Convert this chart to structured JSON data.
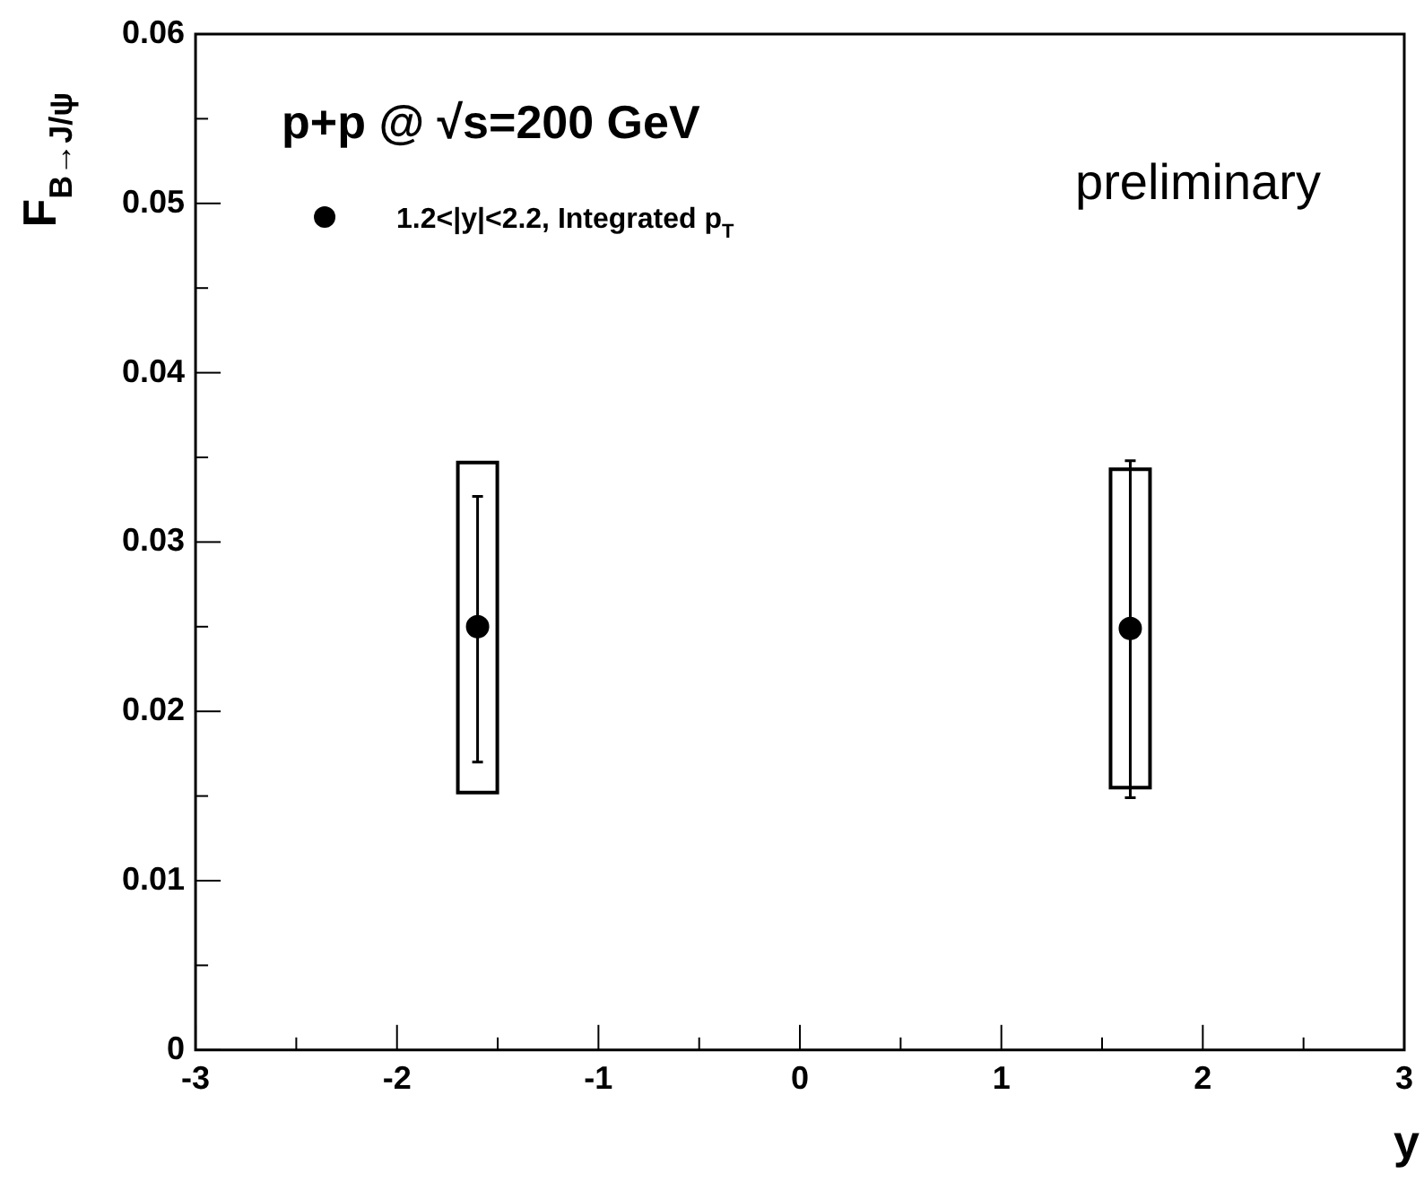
{
  "chart_data": {
    "type": "scatter",
    "xlabel": "y",
    "ylabel": "F$_{B→J/ψ}$",
    "annotations": [
      "p+p @ √s=200 GeV",
      "preliminary"
    ],
    "xlim": [
      -3,
      3
    ],
    "xticks": [
      -3,
      {
        "value": -2.5,
        "label": null
      },
      -2,
      {
        "value": -1.5,
        "label": null
      },
      -1,
      {
        "value": -0.5,
        "label": null
      },
      0,
      {
        "value": 0.5,
        "label": null
      },
      1,
      {
        "value": 1.5,
        "label": null
      },
      2,
      {
        "value": 2.5,
        "label": null
      },
      3
    ],
    "ylim": [
      0,
      0.06
    ],
    "yticks": [
      0,
      {
        "value": 0.005,
        "label": null
      },
      0.01,
      {
        "value": 0.015,
        "label": null
      },
      0.02,
      {
        "value": 0.025,
        "label": null
      },
      0.03,
      {
        "value": 0.035,
        "label": null
      },
      0.04,
      {
        "value": 0.045,
        "label": null
      },
      0.05,
      {
        "value": 0.055,
        "label": null
      },
      0.06
    ],
    "grid": false,
    "x": [
      -1.6,
      1.64
    ],
    "legend": "top left",
    "marker": "circle",
    "series": [
      {
        "type": "bar",
        "color": "#000000",
        "base": [
          0.0152,
          0.0155
        ],
        "values": [
          0.0195,
          0.0188
        ]
      },
      {
        "name": "1.2<|y|<2.2, Integrated p$_{T}$",
        "color": "#000000",
        "values": [
          0.025,
          0.0249
        ],
        "errors": [
          [
            0.017,
            0.0327
          ],
          [
            0.0149,
            0.0348
          ]
        ]
      }
    ]
  }
}
